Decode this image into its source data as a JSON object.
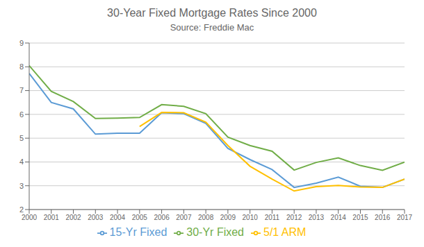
{
  "chart_data": {
    "type": "line",
    "title": "30-Year Fixed Mortgage Rates Since 2000",
    "subtitle": "Source: Freddie Mac",
    "x": [
      2000,
      2001,
      2002,
      2003,
      2004,
      2005,
      2006,
      2007,
      2008,
      2009,
      2010,
      2011,
      2012,
      2013,
      2014,
      2015,
      2016,
      2017
    ],
    "series": [
      {
        "name": "30-Yr Fixed",
        "color": "#70ad47",
        "values": [
          8.05,
          6.97,
          6.54,
          5.83,
          5.84,
          5.87,
          6.41,
          6.34,
          6.03,
          5.04,
          4.69,
          4.45,
          3.66,
          3.98,
          4.17,
          3.85,
          3.65,
          3.99
        ]
      },
      {
        "name": "15-Yr Fixed",
        "color": "#5b9bd5",
        "values": [
          7.72,
          6.5,
          6.23,
          5.17,
          5.21,
          5.21,
          6.07,
          6.03,
          5.62,
          4.57,
          4.1,
          3.68,
          2.93,
          3.11,
          3.36,
          2.98,
          2.93,
          3.28
        ]
      },
      {
        "name": "5/1 ARM",
        "color": "#ffc000",
        "values": [
          null,
          null,
          null,
          null,
          null,
          5.49,
          6.08,
          6.07,
          5.67,
          4.69,
          3.82,
          3.28,
          2.78,
          2.96,
          3.01,
          2.95,
          2.93,
          3.28
        ]
      }
    ],
    "xlim": [
      2000,
      2017
    ],
    "xticks": [
      2000,
      2001,
      2002,
      2003,
      2004,
      2005,
      2006,
      2007,
      2008,
      2009,
      2010,
      2011,
      2012,
      2013,
      2014,
      2015,
      2016,
      2017
    ],
    "ylim": [
      2,
      9
    ],
    "yticks": [
      2,
      3,
      4,
      5,
      6,
      7,
      8,
      9
    ],
    "grid": true,
    "legend": "bottom"
  }
}
